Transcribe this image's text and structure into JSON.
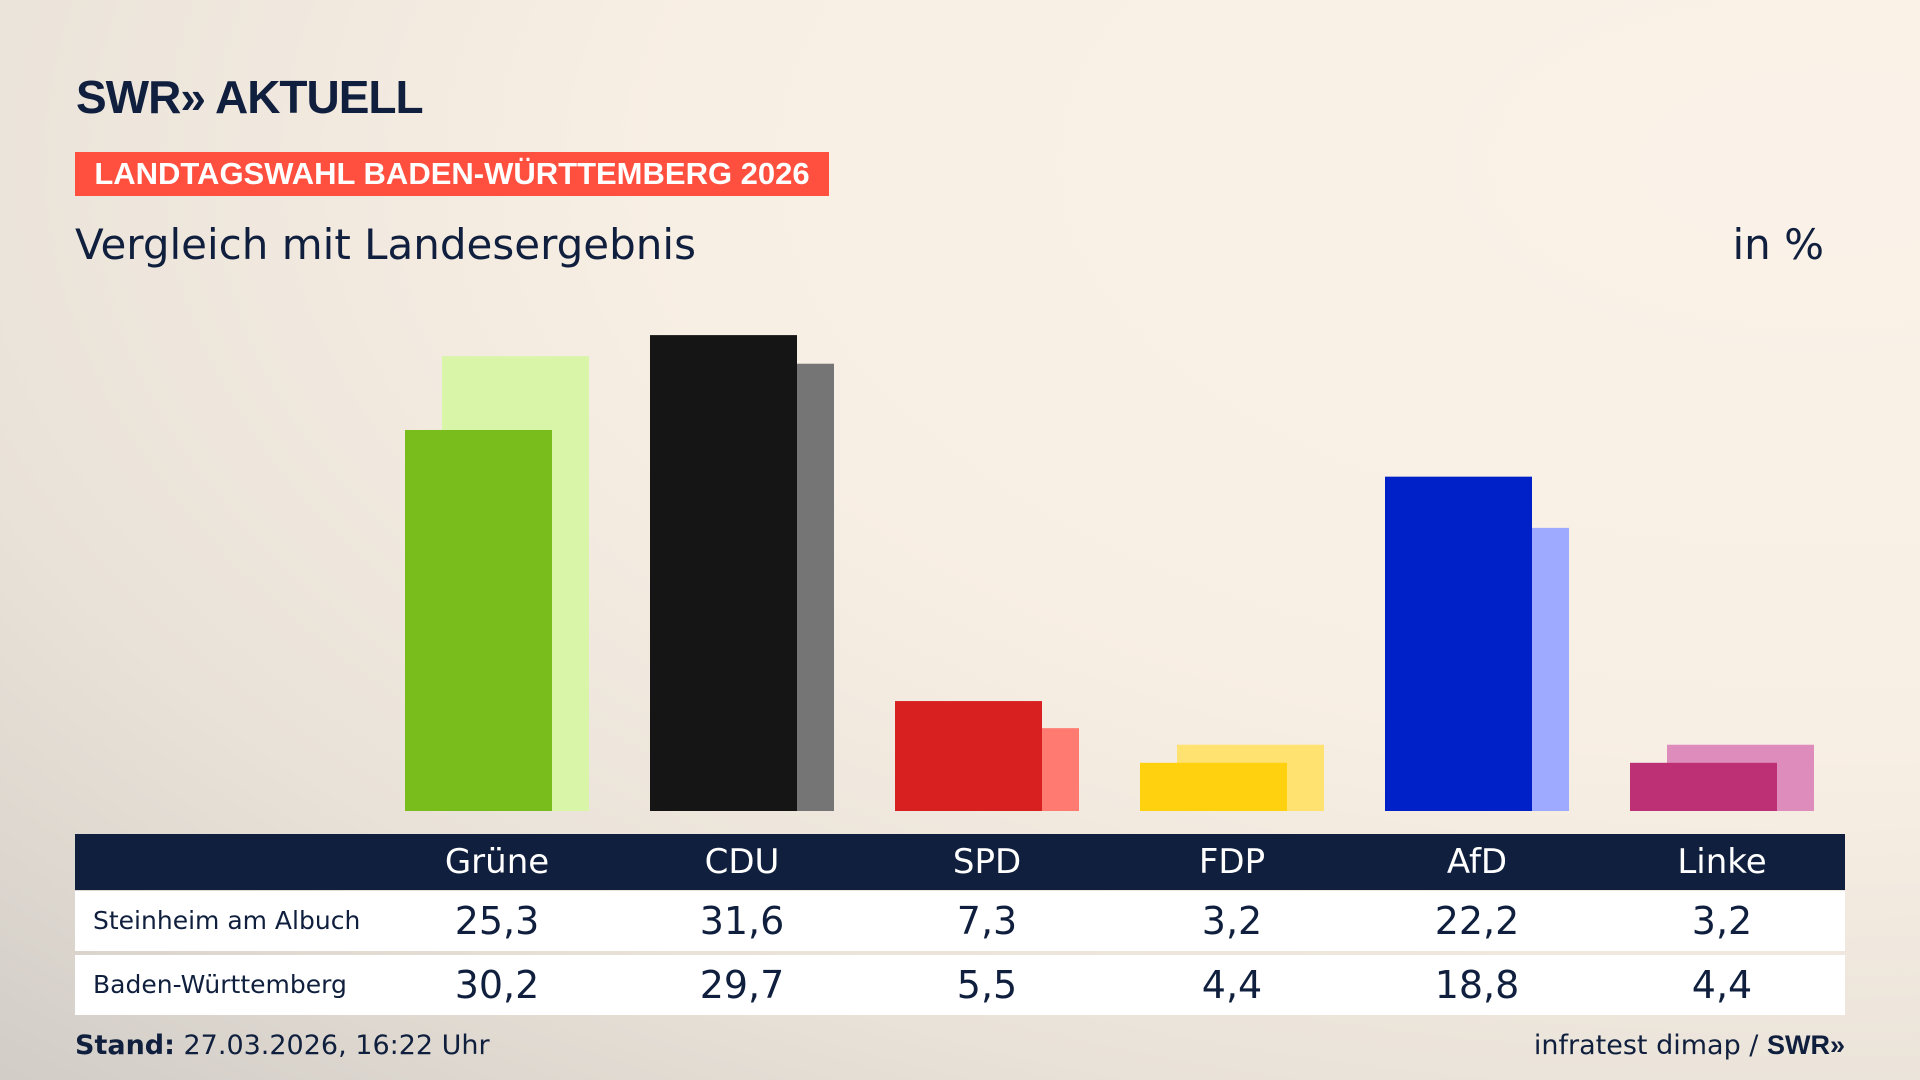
{
  "header": {
    "logo": "SWR» AKTUELL",
    "tag": "LANDTAGSWAHL BADEN-WÜRTTEMBERG 2026",
    "subtitle": "Vergleich mit Landesergebnis",
    "unit": "in %"
  },
  "chart_data": {
    "type": "bar",
    "categories": [
      "Grüne",
      "CDU",
      "SPD",
      "FDP",
      "AfD",
      "Linke"
    ],
    "series": [
      {
        "name": "Steinheim am Albuch",
        "values": [
          25.3,
          31.6,
          7.3,
          3.2,
          22.2,
          3.2
        ]
      },
      {
        "name": "Baden-Württemberg",
        "values": [
          30.2,
          29.7,
          5.5,
          4.4,
          18.8,
          4.4
        ]
      }
    ],
    "display_values": [
      [
        "25,3",
        "31,6",
        "7,3",
        "3,2",
        "22,2",
        "3,2"
      ],
      [
        "30,2",
        "29,7",
        "5,5",
        "4,4",
        "18,8",
        "4,4"
      ]
    ],
    "colors": {
      "primary": [
        "#79bd1c",
        "#151515",
        "#d82020",
        "#ffd10f",
        "#0021c7",
        "#be3075"
      ],
      "secondary": [
        "#d8f5a8",
        "#757575",
        "#ff7a70",
        "#ffe270",
        "#9eaaff",
        "#de8cbb"
      ]
    },
    "ylim": [
      0,
      32
    ],
    "grid": false
  },
  "footer": {
    "stand_label": "Stand:",
    "stand_value": " 27.03.2026, 16:22 Uhr",
    "source": "infratest dimap / ",
    "source_logo": "SWR»"
  }
}
